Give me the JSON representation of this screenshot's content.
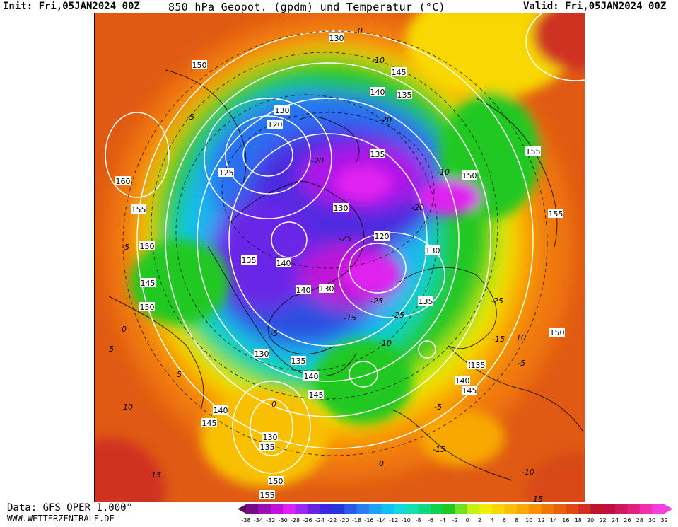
{
  "header": {
    "init": "Init: Fri,05JAN2024 00Z",
    "title": "850 hPa Geopot. (gpdm) und Temperatur (°C)",
    "valid": "Valid: Fri,05JAN2024 00Z"
  },
  "footer": {
    "data_source": "Data: GFS OPER 1.000°",
    "website": "WWW.WETTERZENTRALE.DE"
  },
  "legend": {
    "ticks": [
      "-38",
      "-34",
      "-32",
      "-30",
      "-28",
      "-26",
      "-24",
      "-22",
      "-20",
      "-18",
      "-16",
      "-14",
      "-12",
      "-10",
      "-8",
      "-6",
      "-4",
      "-2",
      "0",
      "2",
      "4",
      "6",
      "8",
      "10",
      "12",
      "14",
      "16",
      "18",
      "20",
      "22",
      "24",
      "26",
      "28",
      "30",
      "32"
    ],
    "colors": [
      "#5a0a5a",
      "#7a0a8c",
      "#9a10b4",
      "#c010dc",
      "#e020f0",
      "#9a28f0",
      "#6a24e0",
      "#3c28e0",
      "#2838d8",
      "#2a5ae6",
      "#2a7cf0",
      "#20a0f0",
      "#10c0f0",
      "#10d8e0",
      "#10e0b0",
      "#10d880",
      "#10d050",
      "#20c820",
      "#70e020",
      "#c8f010",
      "#f0f000",
      "#f8d800",
      "#f8c000",
      "#f8a800",
      "#f89000",
      "#f07800",
      "#e86010",
      "#e04818",
      "#d03020",
      "#b81828",
      "#c01040",
      "#d01860",
      "#e02080",
      "#f030b0",
      "#f040e0"
    ]
  },
  "map": {
    "geopotential_labels": [
      "130",
      "150",
      "145",
      "140",
      "135",
      "130",
      "120",
      "125",
      "160",
      "155",
      "150",
      "145",
      "150",
      "135",
      "140",
      "135",
      "130",
      "120",
      "130",
      "140",
      "135",
      "130",
      "155",
      "150",
      "155",
      "150",
      "130",
      "135",
      "140",
      "130",
      "135",
      "140",
      "145",
      "140",
      "145",
      "135",
      "130",
      "150",
      "155",
      "145"
    ],
    "temperature_labels": [
      "-5",
      "0",
      "-10",
      "-20",
      "-25",
      "-20",
      "-25",
      "-15",
      "-5",
      "0",
      "-15",
      "-25",
      "-20",
      "-10",
      "-25",
      "-10",
      "-5",
      "0",
      "-5",
      "-10",
      "-15",
      "5",
      "10",
      "15",
      "5",
      "-5",
      "0",
      "10",
      "15"
    ]
  }
}
